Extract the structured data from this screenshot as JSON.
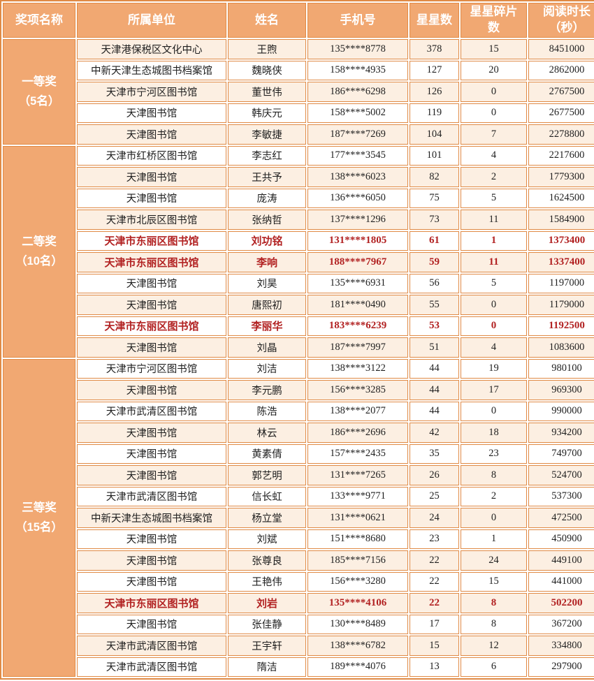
{
  "colors": {
    "header_bg": "#F1A872",
    "border": "#E08A45",
    "stripe_row_bg": "#FCEFE2",
    "plain_row_bg": "#FFFFFF",
    "header_text": "#FFFFFF",
    "body_text": "#1F1F1F",
    "highlight_text": "#B22222"
  },
  "table": {
    "columns": [
      "奖项名称",
      "所属单位",
      "姓名",
      "手机号",
      "星星数",
      "星星碎片\n数",
      "阅读时长\n（秒）"
    ],
    "groups": [
      {
        "label": "一等奖\n（5名）",
        "rows": [
          {
            "unit": "天津港保税区文化中心",
            "name": "王煦",
            "phone": "135****8778",
            "stars": "378",
            "fragments": "15",
            "duration": "8451000",
            "highlight": false
          },
          {
            "unit": "中新天津生态城图书档案馆",
            "name": "魏晓侠",
            "phone": "158****4935",
            "stars": "127",
            "fragments": "20",
            "duration": "2862000",
            "highlight": false
          },
          {
            "unit": "天津市宁河区图书馆",
            "name": "董世伟",
            "phone": "186****6298",
            "stars": "126",
            "fragments": "0",
            "duration": "2767500",
            "highlight": false
          },
          {
            "unit": "天津图书馆",
            "name": "韩庆元",
            "phone": "158****5002",
            "stars": "119",
            "fragments": "0",
            "duration": "2677500",
            "highlight": false
          },
          {
            "unit": "天津图书馆",
            "name": "李敏捷",
            "phone": "187****7269",
            "stars": "104",
            "fragments": "7",
            "duration": "2278800",
            "highlight": false
          }
        ]
      },
      {
        "label": "二等奖\n（10名）",
        "rows": [
          {
            "unit": "天津市红桥区图书馆",
            "name": "李志红",
            "phone": "177****3545",
            "stars": "101",
            "fragments": "4",
            "duration": "2217600",
            "highlight": false
          },
          {
            "unit": "天津图书馆",
            "name": "王共予",
            "phone": "138****6023",
            "stars": "82",
            "fragments": "2",
            "duration": "1779300",
            "highlight": false
          },
          {
            "unit": "天津图书馆",
            "name": "庞涛",
            "phone": "136****6050",
            "stars": "75",
            "fragments": "5",
            "duration": "1624500",
            "highlight": false
          },
          {
            "unit": "天津市北辰区图书馆",
            "name": "张纳哲",
            "phone": "137****1296",
            "stars": "73",
            "fragments": "11",
            "duration": "1584900",
            "highlight": false
          },
          {
            "unit": "天津市东丽区图书馆",
            "name": "刘功铭",
            "phone": "131****1805",
            "stars": "61",
            "fragments": "1",
            "duration": "1373400",
            "highlight": true
          },
          {
            "unit": "天津市东丽区图书馆",
            "name": "李响",
            "phone": "188****7967",
            "stars": "59",
            "fragments": "11",
            "duration": "1337400",
            "highlight": true
          },
          {
            "unit": "天津图书馆",
            "name": "刘昊",
            "phone": "135****6931",
            "stars": "56",
            "fragments": "5",
            "duration": "1197000",
            "highlight": false
          },
          {
            "unit": "天津图书馆",
            "name": "唐熙初",
            "phone": "181****0490",
            "stars": "55",
            "fragments": "0",
            "duration": "1179000",
            "highlight": false
          },
          {
            "unit": "天津市东丽区图书馆",
            "name": "李丽华",
            "phone": "183****6239",
            "stars": "53",
            "fragments": "0",
            "duration": "1192500",
            "highlight": true
          },
          {
            "unit": "天津图书馆",
            "name": "刘晶",
            "phone": "187****7997",
            "stars": "51",
            "fragments": "4",
            "duration": "1083600",
            "highlight": false
          }
        ]
      },
      {
        "label": "三等奖\n（15名）",
        "rows": [
          {
            "unit": "天津市宁河区图书馆",
            "name": "刘洁",
            "phone": "138****3122",
            "stars": "44",
            "fragments": "19",
            "duration": "980100",
            "highlight": false
          },
          {
            "unit": "天津图书馆",
            "name": "李元鹏",
            "phone": "156****3285",
            "stars": "44",
            "fragments": "17",
            "duration": "969300",
            "highlight": false
          },
          {
            "unit": "天津市武清区图书馆",
            "name": "陈浩",
            "phone": "138****2077",
            "stars": "44",
            "fragments": "0",
            "duration": "990000",
            "highlight": false
          },
          {
            "unit": "天津图书馆",
            "name": "林云",
            "phone": "186****2696",
            "stars": "42",
            "fragments": "18",
            "duration": "934200",
            "highlight": false
          },
          {
            "unit": "天津图书馆",
            "name": "黄素倩",
            "phone": "157****2435",
            "stars": "35",
            "fragments": "23",
            "duration": "749700",
            "highlight": false
          },
          {
            "unit": "天津图书馆",
            "name": "郭艺明",
            "phone": "131****7265",
            "stars": "26",
            "fragments": "8",
            "duration": "524700",
            "highlight": false
          },
          {
            "unit": "天津市武清区图书馆",
            "name": "信长虹",
            "phone": "133****9771",
            "stars": "25",
            "fragments": "2",
            "duration": "537300",
            "highlight": false
          },
          {
            "unit": "中新天津生态城图书档案馆",
            "name": "杨立堂",
            "phone": "131****0621",
            "stars": "24",
            "fragments": "0",
            "duration": "472500",
            "highlight": false
          },
          {
            "unit": "天津图书馆",
            "name": "刘斌",
            "phone": "151****8680",
            "stars": "23",
            "fragments": "1",
            "duration": "450900",
            "highlight": false
          },
          {
            "unit": "天津图书馆",
            "name": "张尊良",
            "phone": "185****7156",
            "stars": "22",
            "fragments": "24",
            "duration": "449100",
            "highlight": false
          },
          {
            "unit": "天津图书馆",
            "name": "王艳伟",
            "phone": "156****3280",
            "stars": "22",
            "fragments": "15",
            "duration": "441000",
            "highlight": false
          },
          {
            "unit": "天津市东丽区图书馆",
            "name": "刘岩",
            "phone": "135****4106",
            "stars": "22",
            "fragments": "8",
            "duration": "502200",
            "highlight": true
          },
          {
            "unit": "天津图书馆",
            "name": "张佳静",
            "phone": "130****8489",
            "stars": "17",
            "fragments": "8",
            "duration": "367200",
            "highlight": false
          },
          {
            "unit": "天津市武清区图书馆",
            "name": "王宇轩",
            "phone": "138****6782",
            "stars": "15",
            "fragments": "12",
            "duration": "334800",
            "highlight": false
          },
          {
            "unit": "天津市武清区图书馆",
            "name": "隋洁",
            "phone": "189****4076",
            "stars": "13",
            "fragments": "6",
            "duration": "297900",
            "highlight": false
          }
        ]
      }
    ]
  }
}
